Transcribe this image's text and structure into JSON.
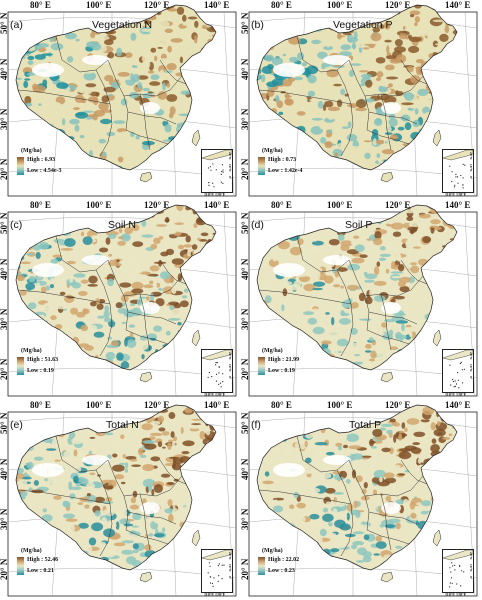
{
  "panels": [
    {
      "label": "(a)",
      "title": "Vegetation N",
      "legend": {
        "unit": "(Mg/ha)",
        "high": "High : 6.93",
        "low": "Low : 4.54e-3"
      },
      "colors": [
        "#1f8f9e",
        "#86c2bd",
        "#e8e2b8",
        "#c89a64",
        "#8a5a2b"
      ]
    },
    {
      "label": "(b)",
      "title": "Vegetation P",
      "legend": {
        "unit": "(Mg/ha)",
        "high": "High : 0.73",
        "low": "Low : 1.42e-4"
      },
      "colors": [
        "#1f8f9e",
        "#86c2bd",
        "#e8e2b8",
        "#c89a64",
        "#8a5a2b"
      ]
    },
    {
      "label": "(c)",
      "title": "Soil N",
      "legend": {
        "unit": "(Mg/ha)",
        "high": "High : 51.63",
        "low": "Low : 0.19"
      },
      "colors": [
        "#2a8e9c",
        "#8ec7c0",
        "#eae6c4",
        "#d1a66f",
        "#7f4f26"
      ]
    },
    {
      "label": "(d)",
      "title": "Soil P",
      "legend": {
        "unit": "(Mg/ha)",
        "high": "High : 21.99",
        "low": "Low : 0.19"
      },
      "colors": [
        "#2a8e9c",
        "#8ec7c0",
        "#eae6c4",
        "#d1a66f",
        "#7f4f26"
      ]
    },
    {
      "label": "(e)",
      "title": "Total N",
      "legend": {
        "unit": "(Mg/ha)",
        "high": "High : 52.46",
        "low": "Low : 0.21"
      },
      "colors": [
        "#2a8e9c",
        "#8ec7c0",
        "#eae6c4",
        "#d1a66f",
        "#7f4f26"
      ]
    },
    {
      "label": "(f)",
      "title": "Total P",
      "legend": {
        "unit": "(Mg/ha)",
        "high": "High : 22.02",
        "low": "Low : 0.23"
      },
      "colors": [
        "#2a8e9c",
        "#8ec7c0",
        "#eae6c4",
        "#d1a66f",
        "#7f4f26"
      ]
    }
  ],
  "axes": {
    "lon_ticks": [
      "80° E",
      "100° E",
      "120° E",
      "140° E"
    ],
    "lat_ticks": [
      "50° N",
      "40° N",
      "30° N",
      "20° N"
    ],
    "inset_bottom": [
      "110°E",
      "120°E"
    ],
    "inset_right": [
      "20°N",
      "10°N",
      "0°"
    ]
  }
}
